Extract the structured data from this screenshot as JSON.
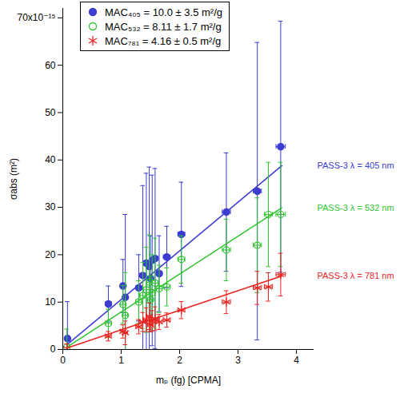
{
  "chart_data": {
    "type": "scatter",
    "x_label": "mₚ (fg) [CPMA]",
    "y_label": "σabs (m²)",
    "xlim": [
      0,
      4.3
    ],
    "xticks": [
      0,
      1,
      2,
      3,
      4
    ],
    "ylim": [
      0,
      7.2e-14
    ],
    "yticks": [
      0,
      {
        "value": 1e-14,
        "label": "10"
      },
      {
        "value": 2e-14,
        "label": "20"
      },
      {
        "value": 3e-14,
        "label": "30"
      },
      {
        "value": 4e-14,
        "label": "40"
      },
      {
        "value": 5e-14,
        "label": "50"
      },
      {
        "value": 6e-14,
        "label": "60"
      },
      {
        "value": 7e-14,
        "label": "70x10⁻¹⁵"
      }
    ],
    "grid": false,
    "legend": "top",
    "series": [
      {
        "name": "MAC₄₀₅ = 10.0 ± 3.5 m²/g",
        "color": "#3c3cd2",
        "marker": "filled circle",
        "annotation": "PASS-3 λ = 405 nm",
        "x": [
          0.08,
          0.78,
          1.03,
          1.07,
          1.3,
          1.37,
          1.43,
          1.48,
          1.5,
          1.53,
          1.58,
          1.65,
          1.78,
          2.03,
          2.8,
          3.33,
          3.73
        ],
        "values": [
          2.3e-15,
          9.6e-15,
          1.34e-14,
          1.1e-14,
          1.3e-14,
          1.56e-14,
          1.82e-14,
          1.75e-14,
          1.5e-14,
          1.88e-14,
          1.92e-14,
          1.6e-14,
          1.95e-14,
          2.43e-14,
          2.9e-14,
          3.34e-14,
          4.28e-14
        ],
        "y_error": [
          7.8e-15,
          3.8e-15,
          5.6e-15,
          1.75e-14,
          7e-15,
          1.9e-14,
          1.9e-14,
          2.1e-14,
          9e-15,
          1.8e-14,
          1.9e-14,
          8e-15,
          6.5e-15,
          1.1e-14,
          1.25e-14,
          3.14e-14,
          2.65e-14
        ],
        "x_error": [
          0.0,
          0.05,
          0.04,
          0.04,
          0.05,
          0.05,
          0.05,
          0.05,
          0.05,
          0.05,
          0.05,
          0.05,
          0.06,
          0.06,
          0.07,
          0.07,
          0.08
        ],
        "fit": {
          "x": [
            0.07,
            3.75
          ],
          "y": [
            1e-15,
            3.88e-14
          ]
        }
      },
      {
        "name": "MAC₅₃₂ = 8.11 ± 1.7 m²/g",
        "color": "#2fc42f",
        "marker": "open circle",
        "annotation": "PASS-3 λ = 532 nm",
        "x": [
          0.07,
          0.78,
          1.03,
          1.07,
          1.3,
          1.37,
          1.43,
          1.48,
          1.5,
          1.53,
          1.58,
          1.65,
          1.78,
          2.03,
          2.8,
          3.33,
          3.52,
          3.73
        ],
        "values": [
          5e-16,
          5.5e-15,
          9.5e-15,
          7.2e-15,
          1e-14,
          1.14e-14,
          1.26e-14,
          1.42e-14,
          1.05e-14,
          1.2e-14,
          1.4e-14,
          1.28e-14,
          1.32e-14,
          1.9e-14,
          2.1e-14,
          2.2e-14,
          2.85e-14,
          2.85e-14
        ],
        "y_error": [
          3.8e-15,
          3e-15,
          4e-15,
          9e-15,
          4.5e-15,
          7e-15,
          9e-15,
          1e-14,
          5e-15,
          8e-15,
          9.5e-15,
          5e-15,
          4e-15,
          5e-15,
          6.5e-15,
          1e-14,
          1.1e-14,
          1.1e-14
        ],
        "x_error": [
          0.0,
          0.05,
          0.04,
          0.04,
          0.05,
          0.05,
          0.05,
          0.05,
          0.05,
          0.05,
          0.05,
          0.05,
          0.06,
          0.06,
          0.07,
          0.07,
          0.07,
          0.08
        ],
        "fit": {
          "x": [
            0.07,
            3.75
          ],
          "y": [
            5e-16,
            2.99e-14
          ]
        }
      },
      {
        "name": "MAC₇₈₁ = 4.16 ± 0.5 m²/g",
        "color": "#e8231f",
        "marker": "asterisk",
        "annotation": "PASS-3 λ = 781 nm",
        "x": [
          0.07,
          0.78,
          1.03,
          1.07,
          1.3,
          1.37,
          1.43,
          1.48,
          1.5,
          1.53,
          1.58,
          1.65,
          1.78,
          2.03,
          2.8,
          3.33,
          3.52,
          3.73
        ],
        "values": [
          2e-16,
          2.8e-15,
          3.8e-15,
          3.5e-15,
          4.8e-15,
          5.8e-15,
          6.3e-15,
          7e-15,
          5.2e-15,
          6e-15,
          6.5e-15,
          5.8e-15,
          6.2e-15,
          8.3e-15,
          1e-14,
          1.3e-14,
          1.32e-14,
          1.58e-14
        ],
        "y_error": [
          1e-15,
          1e-15,
          1.4e-15,
          2.5e-15,
          1.5e-15,
          2e-15,
          2.5e-15,
          2.8e-15,
          1.5e-15,
          2.2e-15,
          2.5e-15,
          1.6e-15,
          1.5e-15,
          1.8e-15,
          2.4e-15,
          3.5e-15,
          3e-15,
          4.5e-15
        ],
        "x_error": [
          0.0,
          0.05,
          0.04,
          0.04,
          0.05,
          0.05,
          0.05,
          0.05,
          0.05,
          0.05,
          0.05,
          0.05,
          0.06,
          0.06,
          0.07,
          0.07,
          0.07,
          0.08
        ],
        "fit": {
          "x": [
            0.07,
            3.75
          ],
          "y": [
            3e-16,
            1.55e-14
          ]
        }
      }
    ]
  }
}
